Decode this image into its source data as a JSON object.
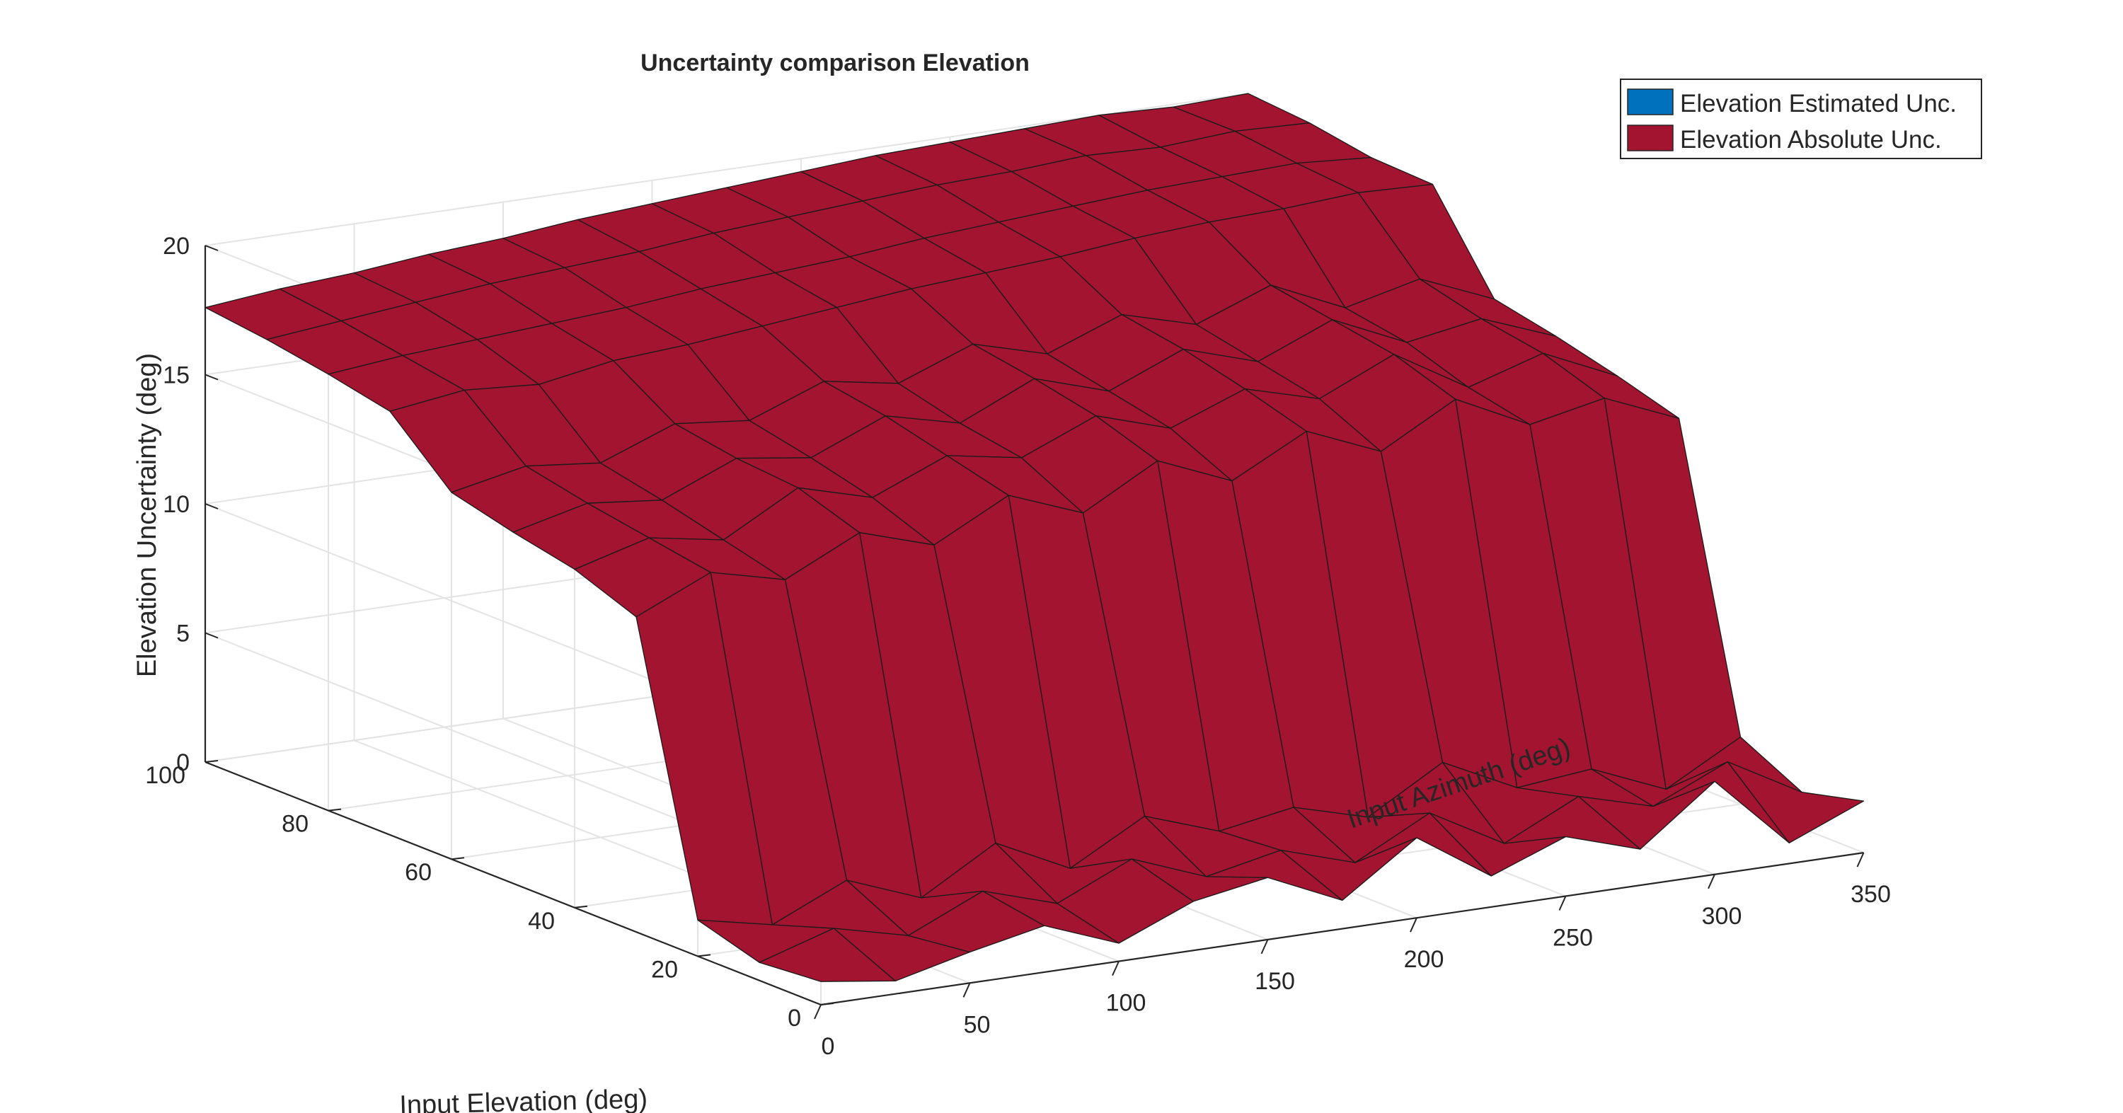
{
  "chart_data": {
    "type": "surface3d",
    "title": "Uncertainty comparison Elevation",
    "xlabel": "Input Azimuth (deg)",
    "ylabel": "Input Elevation (deg)",
    "zlabel": "Elevation  Uncertainty (deg)",
    "x_ticks": [
      "0",
      "50",
      "100",
      "150",
      "200",
      "250",
      "300",
      "350"
    ],
    "y_ticks": [
      "0",
      "20",
      "40",
      "60",
      "80",
      "100"
    ],
    "z_ticks": [
      "0",
      "5",
      "10",
      "15",
      "20"
    ],
    "xlim": [
      0,
      350
    ],
    "ylim": [
      0,
      100
    ],
    "zlim": [
      0,
      20
    ],
    "grid": true,
    "legend_position": "top-right",
    "series": [
      {
        "name": "Elevation Estimated Unc.",
        "color": "#0072bd"
      },
      {
        "name": "Elevation Absolute Unc.",
        "color": "#a2142f"
      }
    ],
    "surface": {
      "azimuth_samples": [
        0,
        25,
        50,
        75,
        100,
        125,
        150,
        175,
        200,
        225,
        250,
        275,
        300,
        325,
        350
      ],
      "elevation_samples": [
        0,
        10,
        20,
        30,
        40,
        50,
        60,
        70,
        80,
        90,
        100
      ],
      "absolute_uncertainty": [
        [
          0.9,
          0.5,
          1.2,
          1.8,
          0.7,
          1.9,
          2.4,
          1.1,
          3.1,
          1.2,
          2.3,
          1.4,
          3.6,
          0.8,
          2.0
        ],
        [
          0.7,
          1.6,
          0.9,
          2.2,
          1.3,
          2.6,
          1.5,
          2.1,
          1.2,
          2.7,
          1.1,
          2.5,
          1.7,
          3.0,
          1.4
        ],
        [
          1.4,
          0.8,
          2.1,
          1.0,
          2.7,
          1.3,
          2.9,
          1.9,
          2.4,
          1.6,
          3.3,
          1.9,
          2.2,
          1.0,
          2.6
        ],
        [
          12.2,
          13.5,
          12.8,
          14.2,
          13.3,
          14.8,
          13.7,
          15.3,
          14.1,
          15.6,
          14.4,
          16.0,
          14.6,
          15.2,
          14.0
        ],
        [
          13.1,
          13.9,
          13.4,
          15.0,
          14.2,
          15.4,
          14.9,
          16.1,
          15.2,
          16.3,
          15.5,
          16.8,
          15.1,
          16.0,
          14.7
        ],
        [
          13.6,
          14.3,
          14.0,
          15.2,
          14.8,
          16.0,
          15.3,
          16.6,
          15.7,
          16.9,
          16.0,
          17.2,
          15.9,
          16.4,
          15.3
        ],
        [
          14.2,
          14.8,
          14.5,
          15.6,
          15.3,
          16.4,
          15.9,
          17.0,
          16.2,
          17.3,
          16.5,
          17.6,
          16.3,
          17.0,
          15.8
        ],
        [
          16.4,
          16.8,
          16.6,
          17.1,
          17.3,
          17.6,
          17.9,
          18.2,
          18.4,
          18.6,
          18.9,
          19.1,
          19.2,
          19.4,
          19.3
        ],
        [
          16.9,
          17.2,
          17.4,
          17.6,
          17.8,
          18.1,
          18.3,
          18.5,
          18.8,
          19.0,
          19.2,
          19.4,
          19.5,
          19.6,
          19.4
        ],
        [
          17.3,
          17.6,
          17.9,
          18.2,
          18.4,
          18.6,
          18.9,
          19.1,
          19.3,
          19.5,
          19.6,
          19.8,
          19.7,
          19.9,
          19.8
        ],
        [
          17.6,
          17.9,
          18.1,
          18.4,
          18.6,
          18.9,
          19.1,
          19.3,
          19.5,
          19.7,
          19.8,
          19.9,
          20.0,
          19.9,
          20.0
        ]
      ]
    }
  }
}
